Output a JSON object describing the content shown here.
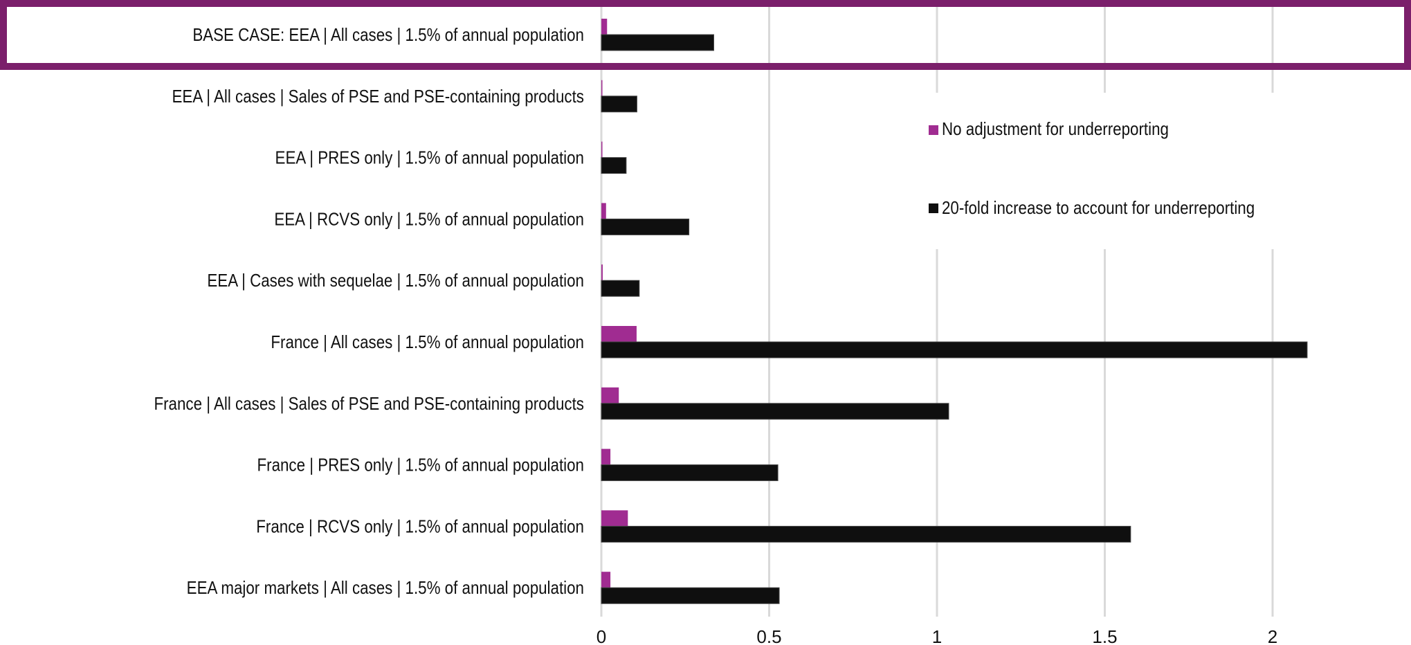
{
  "chart_data": {
    "type": "bar",
    "orientation": "horizontal",
    "categories": [
      "BASE CASE: EEA | All cases | 1.5% of annual population",
      "EEA | All cases | Sales of PSE and PSE-containing products",
      "EEA | PRES only | 1.5% of annual population",
      "EEA | RCVS only | 1.5% of annual population",
      "EEA | Cases with sequelae | 1.5% of annual population",
      "France | All cases | 1.5% of annual population",
      "France | All cases | Sales of PSE and PSE-containing products",
      "France | PRES only | 1.5% of annual population",
      "France | RCVS only | 1.5% of annual population",
      "EEA major markets | All cases | 1.5% of annual population"
    ],
    "series": [
      {
        "name": "No adjustment for underreporting",
        "color": "#a02c91",
        "values": [
          0.017,
          0.003,
          0.002,
          0.014,
          0.004,
          0.105,
          0.052,
          0.027,
          0.079,
          0.027
        ]
      },
      {
        "name": "20-fold increase to account for underreporting",
        "color": "#0f0f0f",
        "values": [
          0.335,
          0.106,
          0.074,
          0.261,
          0.113,
          2.103,
          1.035,
          0.526,
          1.577,
          0.53
        ]
      }
    ],
    "xlim": [
      0,
      2.3
    ],
    "xticks": [
      "0",
      "0.5",
      "1",
      "1.5",
      "2"
    ],
    "xtick_values": [
      0,
      0.5,
      1,
      1.5,
      2
    ],
    "title": "",
    "xlabel": "",
    "ylabel": "",
    "grid": true,
    "legend_position": "top-right",
    "highlight": {
      "category_index": 0,
      "color": "#7b1f6b"
    }
  }
}
